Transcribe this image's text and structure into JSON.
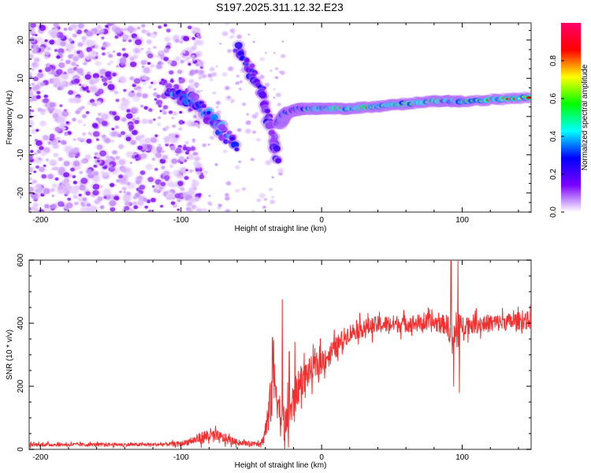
{
  "figure": {
    "title": "S197.2025.311.12.32.E23"
  },
  "chart_data": [
    {
      "type": "heatmap",
      "name": "spectrogram",
      "title": "S197.2025.311.12.32.E23",
      "xlabel": "Height of straight line (km)",
      "ylabel": "Frequency (Hz)",
      "xlim": [
        -208,
        149
      ],
      "ylim": [
        -25,
        24.5
      ],
      "xticks": [
        -200,
        -100,
        0,
        100
      ],
      "xtick_labels": [
        "-200",
        "-100",
        "0",
        "100"
      ],
      "yticks": [
        -20,
        -10,
        0,
        10,
        20
      ],
      "ytick_labels": [
        "-20",
        "-10",
        "0",
        "10",
        "20"
      ],
      "colorbar": {
        "label": "Normalized spectral amplitude",
        "range": [
          0,
          1
        ],
        "ticks": [
          0,
          0.2,
          0.4,
          0.6,
          0.8
        ],
        "tick_labels": [
          "0.0",
          "0.2",
          "0.4",
          "0.6",
          "0.8"
        ],
        "colormap": [
          "#ffffff",
          "#7a00ff",
          "#0000ff",
          "#00ffff",
          "#00ff00",
          "#ffff00",
          "#ff0000",
          "#ff0066"
        ]
      },
      "features": [
        {
          "desc": "diffuse noise field",
          "x_range": [
            -208,
            -95
          ],
          "y_range": [
            -25,
            24.5
          ],
          "amplitude": 0.05
        },
        {
          "desc": "descending branch A",
          "points": [
            [
              -110,
              7
            ],
            [
              -100,
              5
            ],
            [
              -90,
              4
            ],
            [
              -80,
              0
            ],
            [
              -70,
              -4
            ],
            [
              -60,
              -8
            ]
          ],
          "amplitude": 0.3
        },
        {
          "desc": "descending branch B",
          "points": [
            [
              -60,
              18
            ],
            [
              -50,
              12
            ],
            [
              -42,
              6
            ],
            [
              -38,
              0
            ],
            [
              -34,
              -6
            ],
            [
              -32,
              -12
            ]
          ],
          "amplitude": 0.2
        },
        {
          "desc": "signal line",
          "points": [
            [
              -30,
              -2
            ],
            [
              -25,
              1
            ],
            [
              -15,
              2
            ],
            [
              0,
              2
            ],
            [
              20,
              2
            ],
            [
              50,
              3
            ],
            [
              80,
              4
            ],
            [
              100,
              4
            ],
            [
              149,
              5
            ]
          ],
          "amplitude": 0.9
        }
      ]
    },
    {
      "type": "line",
      "name": "snr",
      "xlabel": "Height of straight line (km)",
      "ylabel": "SNR (10 * v/v)",
      "xlim": [
        -208,
        149
      ],
      "ylim": [
        0,
        600
      ],
      "xticks": [
        -200,
        -100,
        0,
        100
      ],
      "xtick_labels": [
        "-200",
        "-100",
        "0",
        "100"
      ],
      "yticks": [
        0,
        200,
        400,
        600
      ],
      "ytick_labels": [
        "0",
        "200",
        "400",
        "600"
      ],
      "series": [
        {
          "name": "SNR",
          "color": "#f03030",
          "envelope_x": [
            -208,
            -120,
            -100,
            -90,
            -80,
            -70,
            -60,
            -50,
            -42,
            -38,
            -35,
            -32,
            -30,
            -26,
            -22,
            -18,
            -14,
            -10,
            -5,
            0,
            5,
            10,
            15,
            20,
            30,
            40,
            60,
            80,
            90,
            92,
            95,
            100,
            120,
            149
          ],
          "envelope_mean": [
            15,
            15,
            18,
            30,
            45,
            35,
            22,
            18,
            25,
            100,
            190,
            200,
            120,
            70,
            120,
            180,
            220,
            240,
            260,
            280,
            300,
            320,
            350,
            370,
            385,
            395,
            400,
            400,
            395,
            330,
            360,
            395,
            400,
            410
          ],
          "envelope_spread": [
            8,
            8,
            10,
            20,
            35,
            25,
            12,
            10,
            20,
            80,
            130,
            130,
            100,
            90,
            100,
            80,
            70,
            65,
            60,
            60,
            55,
            50,
            45,
            40,
            40,
            40,
            40,
            40,
            45,
            100,
            100,
            45,
            40,
            40
          ],
          "spikes": [
            [
              -35,
              355
            ],
            [
              -34,
              345
            ],
            [
              -28,
              475
            ],
            [
              -23,
              310
            ],
            [
              -19,
              340
            ],
            [
              5,
              310
            ],
            [
              92,
              600
            ],
            [
              94,
              200
            ],
            [
              97,
              600
            ],
            [
              98,
              180
            ]
          ]
        }
      ]
    }
  ]
}
